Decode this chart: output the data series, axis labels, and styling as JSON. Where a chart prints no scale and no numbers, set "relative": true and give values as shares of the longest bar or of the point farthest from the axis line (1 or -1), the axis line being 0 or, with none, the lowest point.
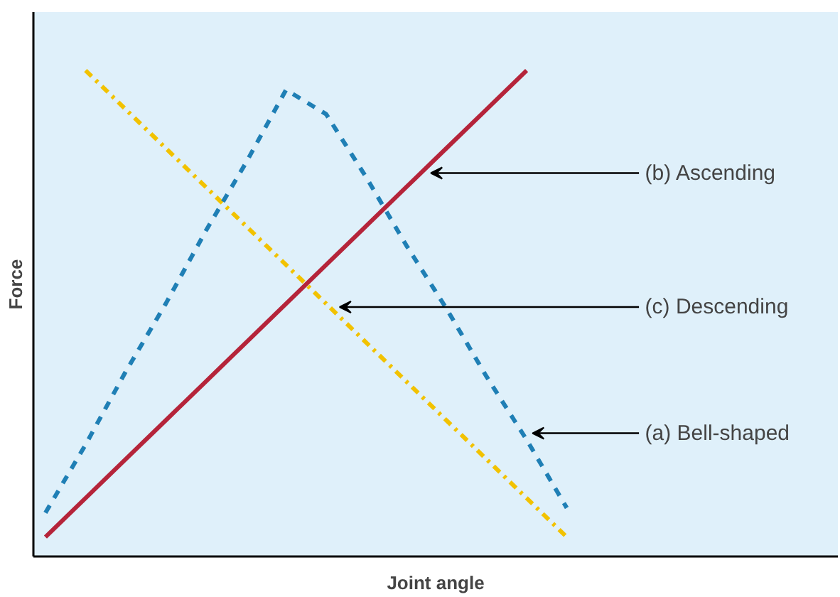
{
  "chart_data": {
    "type": "line",
    "relative": true,
    "xlabel": "Joint angle",
    "ylabel": "Force",
    "marker": "none",
    "categories": [
      null,
      null,
      null,
      null,
      null,
      null,
      null,
      null,
      null,
      null,
      null,
      null,
      null,
      null
    ],
    "series": [
      {
        "color": "#b5243a",
        "line_style": "solid",
        "values": [
          0.04,
          0.12,
          0.2,
          0.28,
          0.36,
          0.44,
          0.52,
          0.6,
          0.68,
          0.76,
          0.84,
          0.92,
          1.0,
          null
        ]
      },
      {
        "color": "#f2c200",
        "line_style": "dashdot",
        "values": [
          null,
          1.0,
          0.92,
          0.84,
          0.76,
          0.68,
          0.6,
          0.52,
          0.44,
          0.36,
          0.28,
          0.2,
          0.12,
          0.04
        ]
      },
      {
        "color": "#1f7fb5",
        "line_style": "dashed",
        "values": [
          0.09,
          0.23,
          0.38,
          0.52,
          0.67,
          0.81,
          0.96,
          0.91,
          0.78,
          0.64,
          0.51,
          0.37,
          0.24,
          0.1
        ]
      }
    ],
    "annotations": [
      "(b) Ascending",
      "(c) Descending",
      "(a) Bell-shaped"
    ]
  }
}
